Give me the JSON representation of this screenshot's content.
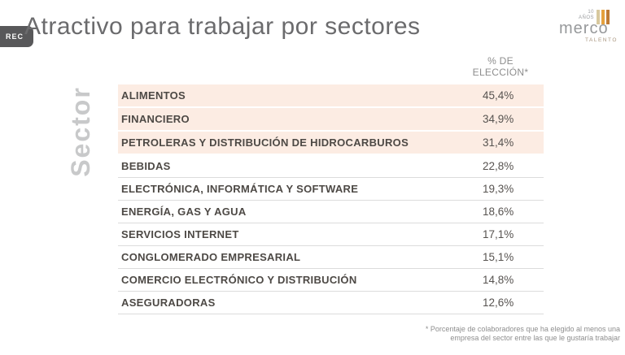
{
  "rec_label": "REC",
  "title": "Atractivo para trabajar por sectores",
  "logo": {
    "years_line1": "10",
    "years_line2": "AÑOS",
    "name": "merco",
    "sub": "TALENTO"
  },
  "axis_label": "Sector",
  "table": {
    "value_header_line1": "% DE",
    "value_header_line2": "ELECCIÓN*",
    "rows": [
      {
        "name": "ALIMENTOS",
        "pct": "45,4%",
        "highlighted": true
      },
      {
        "name": "FINANCIERO",
        "pct": "34,9%",
        "highlighted": true
      },
      {
        "name": "PETROLERAS Y DISTRIBUCIÓN DE HIDROCARBUROS",
        "pct": "31,4%",
        "highlighted": true
      },
      {
        "name": "BEBIDAS",
        "pct": "22,8%",
        "highlighted": false
      },
      {
        "name": "ELECTRÓNICA, INFORMÁTICA Y SOFTWARE",
        "pct": "19,3%",
        "highlighted": false
      },
      {
        "name": "ENERGÍA, GAS Y AGUA",
        "pct": "18,6%",
        "highlighted": false
      },
      {
        "name": "SERVICIOS INTERNET",
        "pct": "17,1%",
        "highlighted": false
      },
      {
        "name": "CONGLOMERADO EMPRESARIAL",
        "pct": "15,1%",
        "highlighted": false
      },
      {
        "name": "COMERCIO ELECTRÓNICO Y DISTRIBUCIÓN",
        "pct": "14,8%",
        "highlighted": false
      },
      {
        "name": "ASEGURADORAS",
        "pct": "12,6%",
        "highlighted": false
      }
    ]
  },
  "footnote": {
    "line1": "* Porcentaje de colaboradores que ha elegido al menos una",
    "line2": "empresa del sector entre las que le gustaría trabajar"
  },
  "colors": {
    "highlight_row_bg": "#fcece3",
    "row_divider": "#dcdcdc",
    "title_gray": "#6b6b6d",
    "text_dark": "#4d4945",
    "muted_gray": "#8d8d8d",
    "axis_label_gray": "#c8c9ca",
    "rec_badge_bg": "#58585a",
    "logo_bar_tan": "#d7c89e",
    "logo_bar_orange": "#e5a13e",
    "logo_bar_brown": "#bf7b35"
  },
  "chart_data": {
    "type": "table",
    "title": "Atractivo para trabajar por sectores",
    "columns": [
      "Sector",
      "% de elección*"
    ],
    "categories": [
      "ALIMENTOS",
      "FINANCIERO",
      "PETROLERAS Y DISTRIBUCIÓN DE HIDROCARBUROS",
      "BEBIDAS",
      "ELECTRÓNICA, INFORMÁTICA Y SOFTWARE",
      "ENERGÍA, GAS Y AGUA",
      "SERVICIOS INTERNET",
      "CONGLOMERADO EMPRESARIAL",
      "COMERCIO ELECTRÓNICO Y DISTRIBUCIÓN",
      "ASEGURADORAS"
    ],
    "values": [
      45.4,
      34.9,
      31.4,
      22.8,
      19.3,
      18.6,
      17.1,
      15.1,
      14.8,
      12.6
    ],
    "unit": "%",
    "highlighted_rows": [
      0,
      1,
      2
    ],
    "footnote": "* Porcentaje de colaboradores que ha elegido al menos una empresa del sector entre las que le gustaría trabajar"
  }
}
